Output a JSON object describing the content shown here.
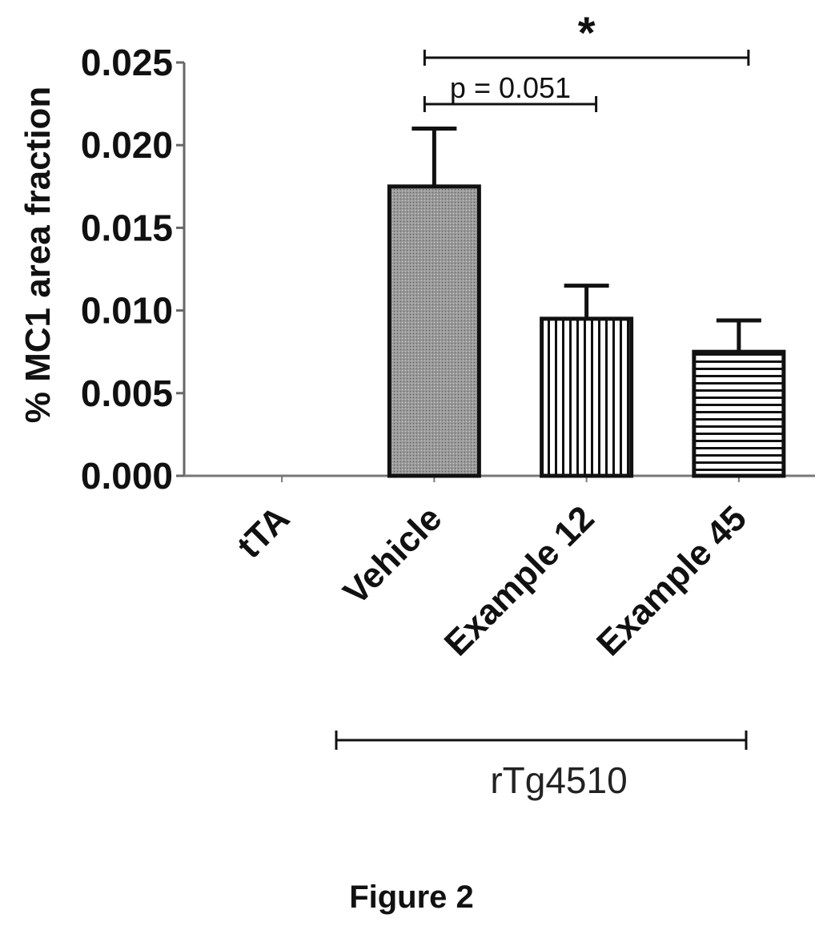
{
  "figure_caption": "Figure 2",
  "chart_data": {
    "type": "bar",
    "ylabel": "% MC1 area fraction",
    "ylim": [
      0,
      0.025
    ],
    "yticks": [
      "0.000",
      "0.005",
      "0.010",
      "0.015",
      "0.020",
      "0.025"
    ],
    "categories": [
      "tTA",
      "Vehicle",
      "Example 12",
      "Example 45"
    ],
    "values": [
      0.0,
      0.0175,
      0.0095,
      0.0075
    ],
    "errors": [
      0.0,
      0.0035,
      0.002,
      0.0019
    ],
    "bar_fill": [
      "none",
      "dotted-gray",
      "vertical-stripes",
      "horizontal-stripes"
    ],
    "group_label": "rTg4510",
    "group_categories": [
      "Vehicle",
      "Example 12",
      "Example 45"
    ],
    "annotations": [
      {
        "from": "Vehicle",
        "to": "Example 12",
        "label": "p = 0.051"
      },
      {
        "from": "Vehicle",
        "to": "Example 45",
        "label": "*"
      }
    ]
  }
}
